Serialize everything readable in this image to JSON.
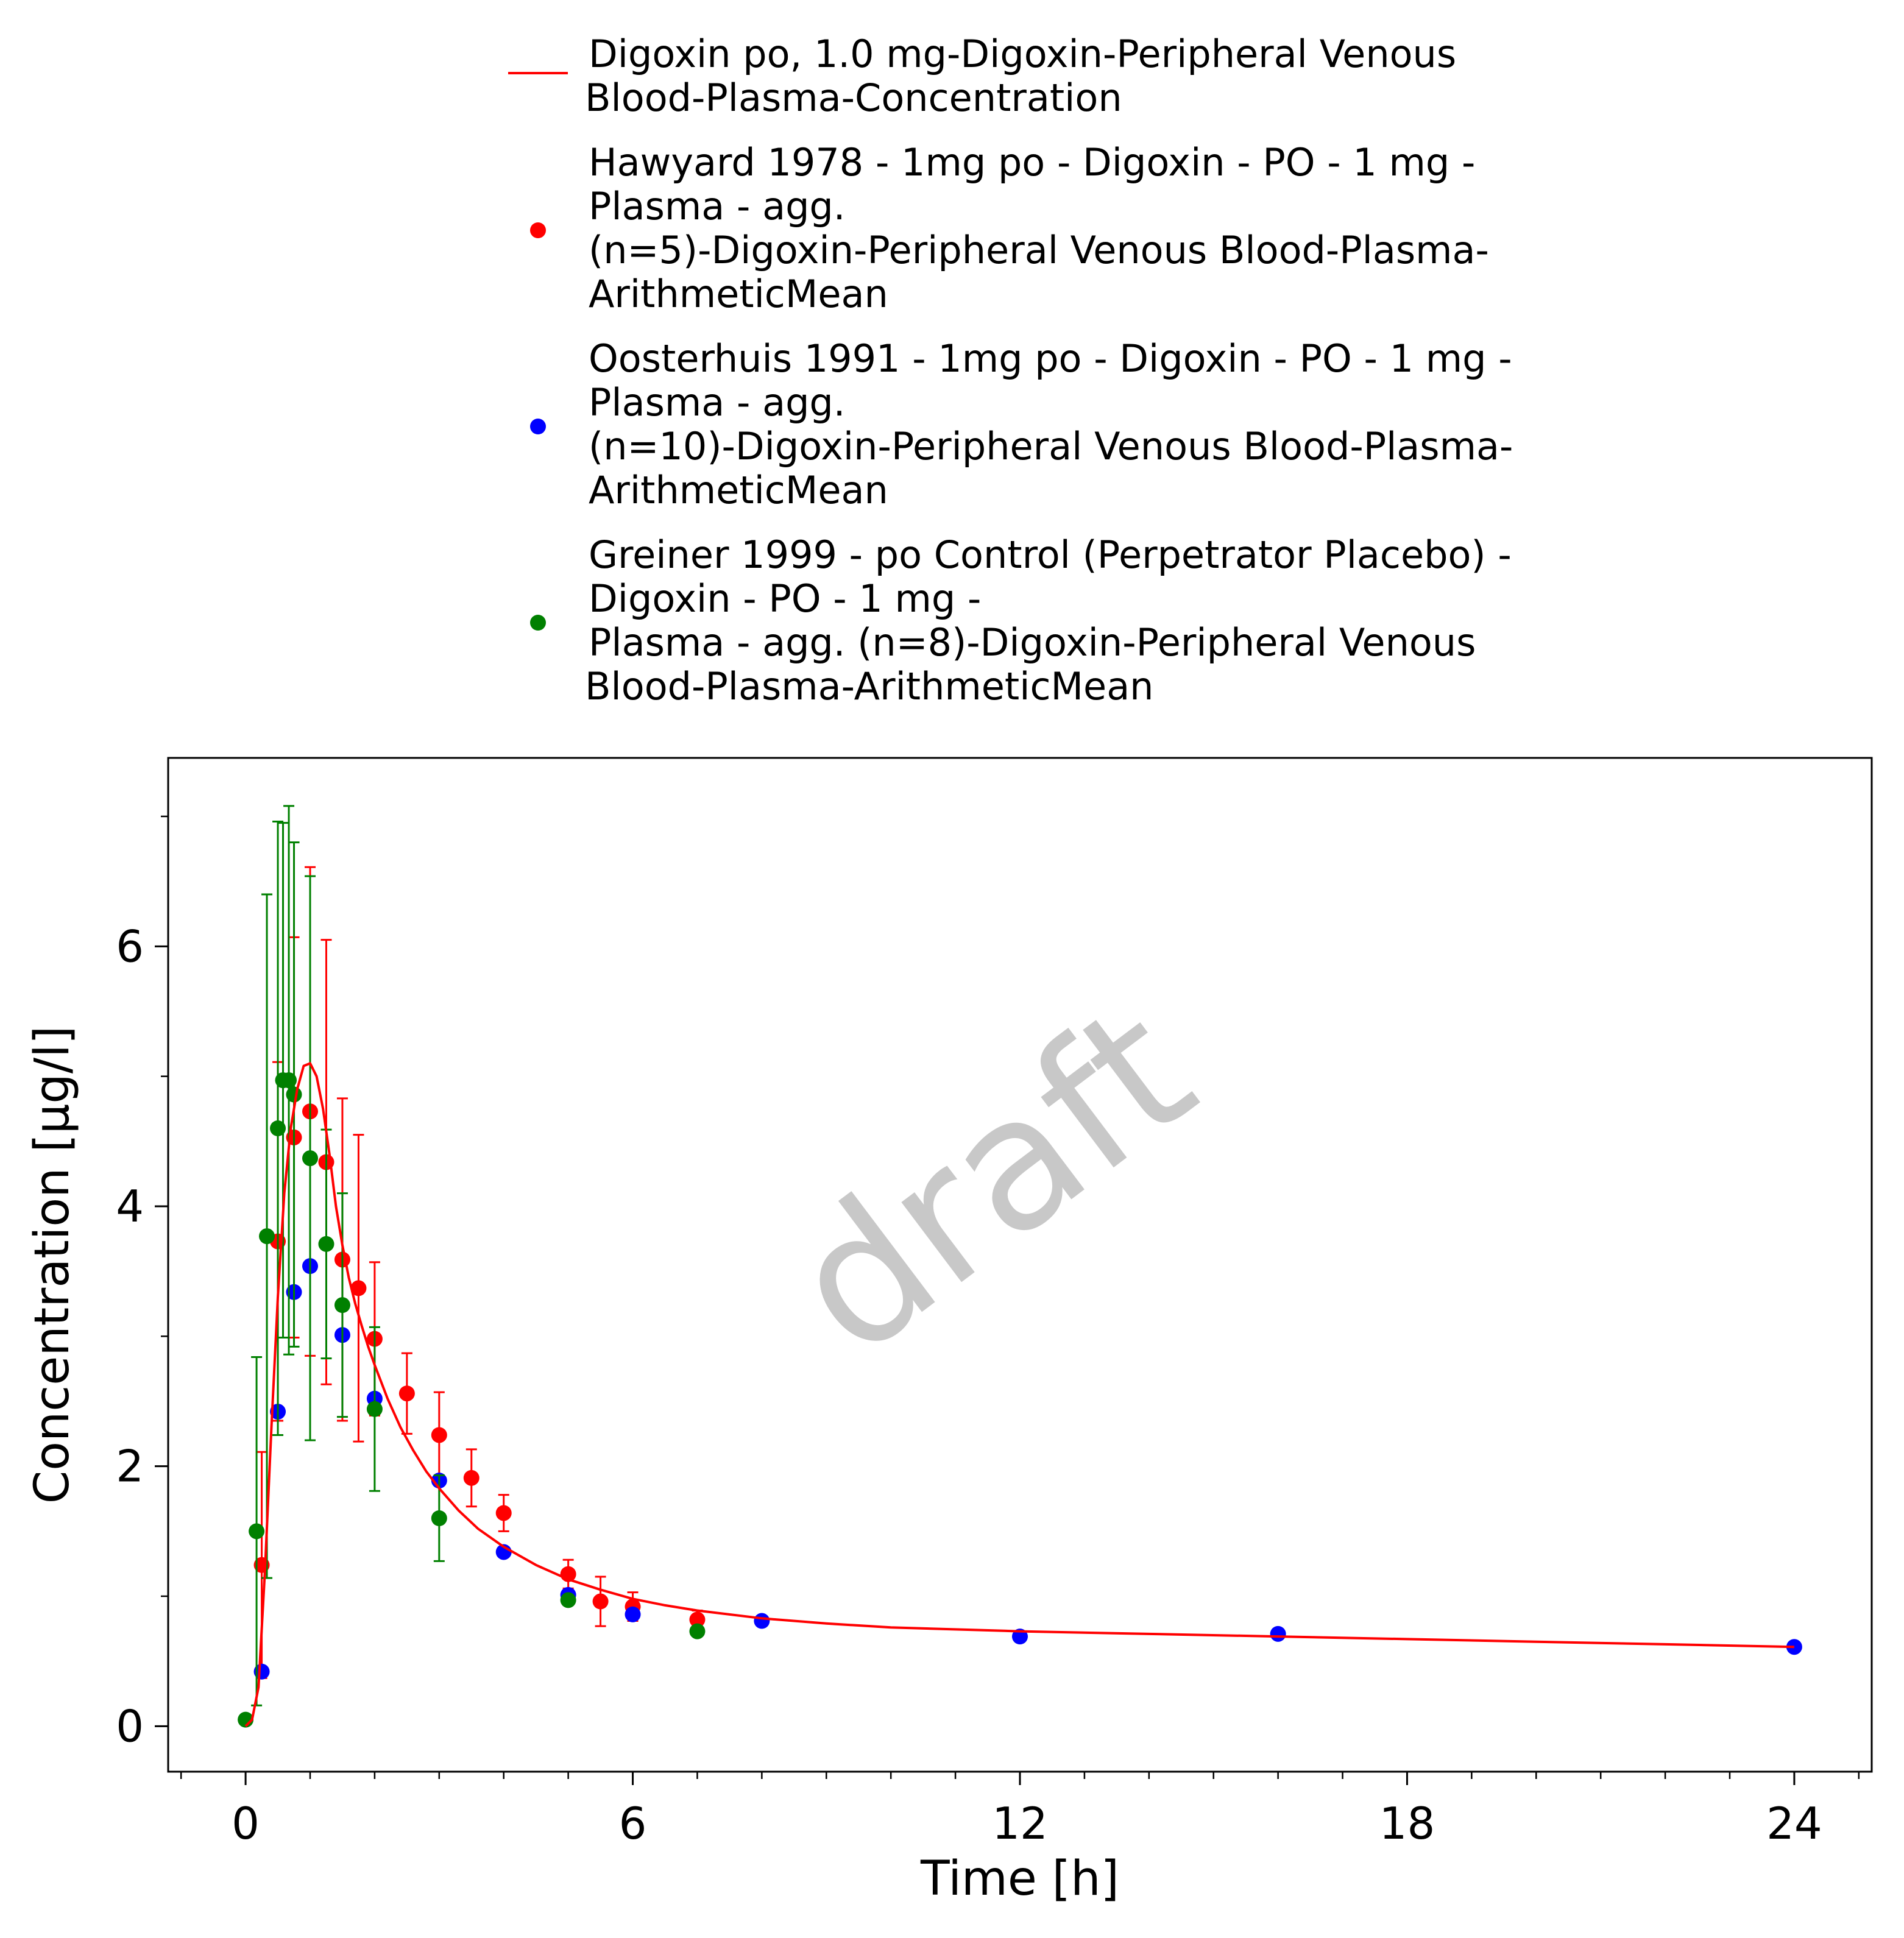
{
  "chart_data": {
    "type": "scatter",
    "title": "",
    "xlabel": "Time [h]",
    "ylabel": "Concentration [µg/l]",
    "xlim": [
      -1.2,
      25.2
    ],
    "ylim": [
      -0.35,
      7.45
    ],
    "x_ticks": [
      0,
      6,
      12,
      18,
      24
    ],
    "x_tick_labels": [
      "0",
      "6",
      "12",
      "18",
      "24"
    ],
    "x_minor_step": 1,
    "y_ticks": [
      0,
      2,
      4,
      6
    ],
    "y_tick_labels": [
      "0",
      "2",
      "4",
      "6"
    ],
    "y_minor_step": 1,
    "grid": false,
    "legend_position": "top",
    "watermark": "draft",
    "series": [
      {
        "name": "Digoxin po, 1.0 mg-Digoxin-Peripheral Venous Blood-Plasma-Concentration",
        "legend_lines": [
          "Digoxin po, 1.0 mg-Digoxin-Peripheral Venous",
          "Blood-Plasma-Concentration"
        ],
        "kind": "line",
        "color": "#ff0000",
        "x": [
          0,
          0.1,
          0.2,
          0.3,
          0.4,
          0.5,
          0.6,
          0.7,
          0.8,
          0.9,
          1.0,
          1.1,
          1.2,
          1.3,
          1.4,
          1.5,
          1.6,
          1.7,
          1.8,
          1.9,
          2.0,
          2.2,
          2.4,
          2.6,
          2.8,
          3.0,
          3.3,
          3.6,
          4.0,
          4.5,
          5.0,
          5.5,
          6.0,
          6.5,
          7.0,
          8.0,
          9.0,
          10.0,
          12.0,
          14.0,
          16.0,
          18.0,
          20.0,
          22.0,
          24.0
        ],
        "y": [
          0,
          0.05,
          0.3,
          1.2,
          2.3,
          3.3,
          4.1,
          4.6,
          4.9,
          5.08,
          5.1,
          5.0,
          4.75,
          4.4,
          4.0,
          3.7,
          3.45,
          3.25,
          3.08,
          2.92,
          2.78,
          2.52,
          2.3,
          2.12,
          1.96,
          1.83,
          1.66,
          1.52,
          1.38,
          1.24,
          1.13,
          1.05,
          0.98,
          0.93,
          0.89,
          0.83,
          0.79,
          0.76,
          0.73,
          0.71,
          0.69,
          0.67,
          0.65,
          0.63,
          0.61
        ]
      },
      {
        "name": "Hawyard 1978 - 1mg po - Digoxin - PO - 1 mg - Plasma - agg. (n=5)-Digoxin-Peripheral Venous Blood-Plasma-ArithmeticMean",
        "legend_lines": [
          "Hawyard 1978 - 1mg po - Digoxin - PO - 1 mg -",
          "Plasma - agg.",
          "(n=5)-Digoxin-Peripheral Venous Blood-Plasma-",
          "ArithmeticMean"
        ],
        "kind": "scatter",
        "color": "#ff0000",
        "x": [
          0.25,
          0.5,
          0.75,
          1.0,
          1.25,
          1.5,
          1.75,
          2.0,
          2.5,
          3.0,
          3.5,
          4.0,
          5.0,
          5.5,
          6.0,
          7.0
        ],
        "y": [
          1.24,
          3.73,
          4.53,
          4.73,
          4.34,
          3.59,
          3.37,
          2.98,
          2.56,
          2.24,
          1.91,
          1.64,
          1.17,
          0.96,
          0.92,
          0.82
        ],
        "yerr": [
          0.87,
          1.38,
          1.54,
          1.88,
          1.71,
          1.24,
          1.18,
          0.59,
          0.31,
          0.33,
          0.22,
          0.14,
          0.11,
          0.19,
          0.11,
          0.07
        ]
      },
      {
        "name": "Oosterhuis 1991 - 1mg po - Digoxin - PO - 1 mg - Plasma - agg. (n=10)-Digoxin-Peripheral Venous Blood-Plasma-ArithmeticMean",
        "legend_lines": [
          "Oosterhuis 1991 - 1mg po - Digoxin - PO - 1 mg -",
          "Plasma - agg.",
          "(n=10)-Digoxin-Peripheral Venous Blood-Plasma-",
          "ArithmeticMean"
        ],
        "kind": "scatter",
        "color": "#0000ff",
        "x": [
          0.25,
          0.5,
          0.75,
          1.0,
          1.5,
          2.0,
          3.0,
          4.0,
          5.0,
          6.0,
          8.0,
          12.0,
          16.0,
          24.0
        ],
        "y": [
          0.42,
          2.42,
          3.34,
          3.54,
          3.01,
          2.52,
          1.89,
          1.34,
          1.01,
          0.86,
          0.81,
          0.69,
          0.71,
          0.61
        ]
      },
      {
        "name": "Greiner 1999 - po Control (Perpetrator Placebo) - Digoxin - PO - 1 mg - Plasma - agg. (n=8)-Digoxin-Peripheral Venous Blood-Plasma-ArithmeticMean",
        "legend_lines": [
          "Greiner 1999 - po Control (Perpetrator Placebo) -",
          "Digoxin - PO - 1 mg -",
          "Plasma - agg. (n=8)-Digoxin-Peripheral Venous",
          "Blood-Plasma-ArithmeticMean"
        ],
        "kind": "scatter",
        "color": "#008000",
        "x": [
          0.0,
          0.17,
          0.33,
          0.5,
          0.58,
          0.67,
          0.75,
          1.0,
          1.25,
          1.5,
          2.0,
          3.0,
          5.0,
          7.0
        ],
        "y": [
          0.05,
          1.5,
          3.77,
          4.6,
          4.97,
          4.97,
          4.86,
          4.37,
          3.71,
          3.24,
          2.44,
          1.6,
          0.97,
          0.73
        ],
        "yerr": [
          0.0,
          1.34,
          2.63,
          2.36,
          1.98,
          2.11,
          1.94,
          2.17,
          0.88,
          0.86,
          0.63,
          0.33,
          0.0,
          0.0
        ]
      }
    ]
  }
}
